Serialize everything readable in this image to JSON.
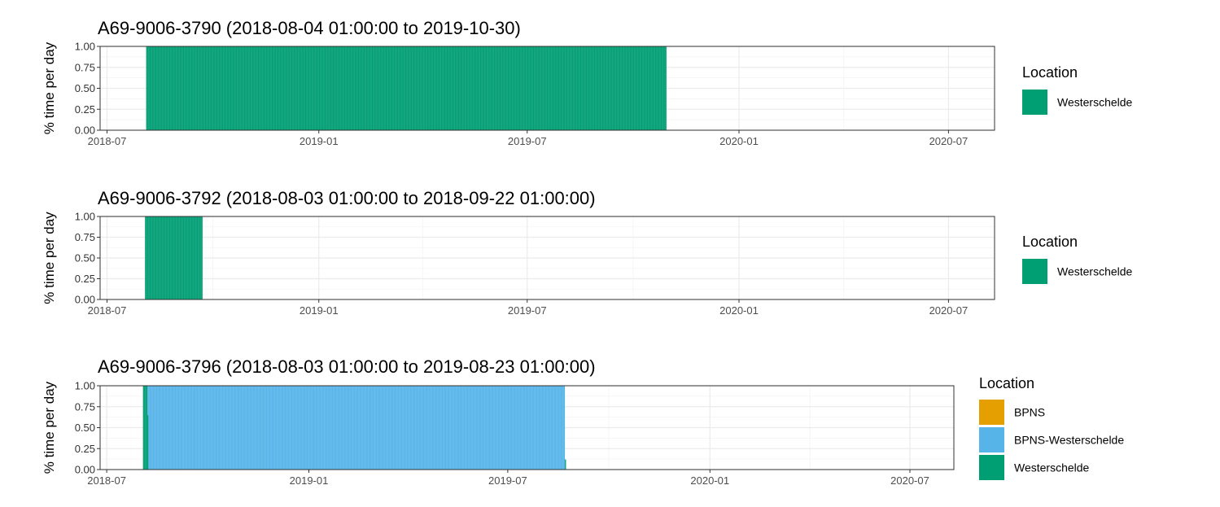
{
  "colors": {
    "BPNS": "#E69F00",
    "BPNS-Westerschelde": "#56B4E9",
    "Westerschelde": "#009E73",
    "grid_major": "#EBEBEB",
    "grid_minor": "#F3F3F3",
    "panel_border": "#333333"
  },
  "chart_data": [
    {
      "type": "bar",
      "title": "A69-9006-3790 (2018-08-04 01:00:00 to 2019-10-30)",
      "xlabel": "",
      "ylabel": "% time per day",
      "x_domain": [
        "2018-06-25",
        "2020-08-10"
      ],
      "ylim": [
        0,
        1
      ],
      "y_ticks": [
        "0.00",
        "0.25",
        "0.50",
        "0.75",
        "1.00"
      ],
      "x_ticks": [
        {
          "date": "2018-07-01",
          "label": "2018-07"
        },
        {
          "date": "2019-01-01",
          "label": "2019-01"
        },
        {
          "date": "2019-07-01",
          "label": "2019-07"
        },
        {
          "date": "2020-01-01",
          "label": "2020-01"
        },
        {
          "date": "2020-07-01",
          "label": "2020-07"
        }
      ],
      "grid": true,
      "legend_position": "right",
      "legend": {
        "title": "Location",
        "entries": [
          "Westerschelde"
        ]
      },
      "series": [
        {
          "name": "Westerschelde",
          "segments": [
            {
              "start": "2018-08-04",
              "end": "2019-10-30",
              "value": 1.0
            }
          ]
        }
      ]
    },
    {
      "type": "bar",
      "title": "A69-9006-3792 (2018-08-03 01:00:00 to 2018-09-22 01:00:00)",
      "xlabel": "",
      "ylabel": "% time per day",
      "x_domain": [
        "2018-06-25",
        "2020-08-10"
      ],
      "ylim": [
        0,
        1
      ],
      "y_ticks": [
        "0.00",
        "0.25",
        "0.50",
        "0.75",
        "1.00"
      ],
      "x_ticks": [
        {
          "date": "2018-07-01",
          "label": "2018-07"
        },
        {
          "date": "2019-01-01",
          "label": "2019-01"
        },
        {
          "date": "2019-07-01",
          "label": "2019-07"
        },
        {
          "date": "2020-01-01",
          "label": "2020-01"
        },
        {
          "date": "2020-07-01",
          "label": "2020-07"
        }
      ],
      "grid": true,
      "legend_position": "right",
      "legend": {
        "title": "Location",
        "entries": [
          "Westerschelde"
        ]
      },
      "series": [
        {
          "name": "Westerschelde",
          "segments": [
            {
              "start": "2018-08-03",
              "end": "2018-09-22",
              "value": 1.0
            }
          ]
        }
      ]
    },
    {
      "type": "bar",
      "title": "A69-9006-3796 (2018-08-03 01:00:00 to 2019-08-23 01:00:00)",
      "xlabel": "",
      "ylabel": "% time per day",
      "x_domain": [
        "2018-06-25",
        "2020-08-10"
      ],
      "ylim": [
        0,
        1
      ],
      "y_ticks": [
        "0.00",
        "0.25",
        "0.50",
        "0.75",
        "1.00"
      ],
      "x_ticks": [
        {
          "date": "2018-07-01",
          "label": "2018-07"
        },
        {
          "date": "2019-01-01",
          "label": "2019-01"
        },
        {
          "date": "2019-07-01",
          "label": "2019-07"
        },
        {
          "date": "2020-01-01",
          "label": "2020-01"
        },
        {
          "date": "2020-07-01",
          "label": "2020-07"
        }
      ],
      "grid": true,
      "legend_position": "right",
      "legend": {
        "title": "Location",
        "entries": [
          "BPNS",
          "BPNS-Westerschelde",
          "Westerschelde"
        ]
      },
      "series": [
        {
          "name": "Westerschelde",
          "segments": [
            {
              "start": "2018-08-03",
              "end": "2018-08-07",
              "value": 1.0
            },
            {
              "start": "2018-08-07",
              "end": "2018-08-08",
              "value": 0.65
            },
            {
              "start": "2019-08-22",
              "end": "2019-08-23",
              "value": 0.12
            }
          ]
        },
        {
          "name": "BPNS-Westerschelde",
          "segments": [
            {
              "start": "2018-08-07",
              "end": "2018-08-08",
              "value": 0.35,
              "base": 0.65
            },
            {
              "start": "2018-08-08",
              "end": "2019-08-22",
              "value": 1.0
            }
          ]
        }
      ]
    }
  ]
}
